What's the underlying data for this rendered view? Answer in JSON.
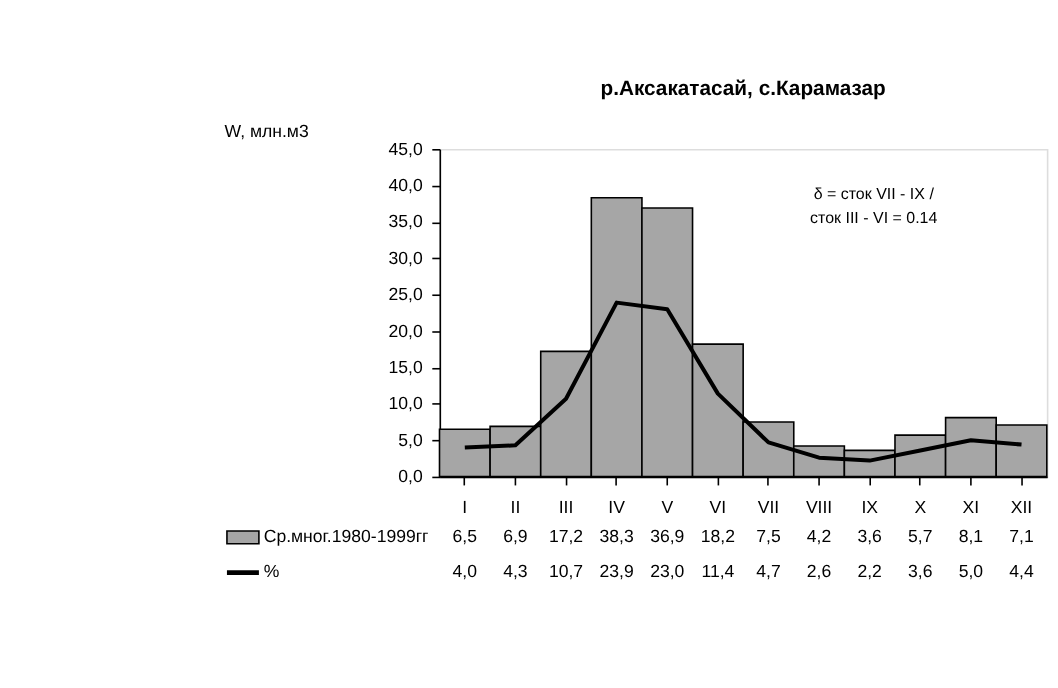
{
  "chart_data": {
    "type": "bar",
    "title": "р.Аксакатасай, с.Карамазар",
    "ylabel": "W, млн.м3",
    "categories": [
      "I",
      "II",
      "III",
      "IV",
      "V",
      "VI",
      "VII",
      "VIII",
      "IX",
      "X",
      "XI",
      "XII"
    ],
    "series": [
      {
        "name": "Ср.мног.1980-1999гг",
        "color": "#a6a6a6",
        "values": [
          6.5,
          6.9,
          17.2,
          38.3,
          36.9,
          18.2,
          7.5,
          4.2,
          3.6,
          5.7,
          8.1,
          7.1
        ],
        "value_labels": [
          "6,5",
          "6,9",
          "17,2",
          "38,3",
          "36,9",
          "18,2",
          "7,5",
          "4,2",
          "3,6",
          "5,7",
          "8,1",
          "7,1"
        ]
      },
      {
        "name": "%",
        "type": "line",
        "color": "#000000",
        "values": [
          4.0,
          4.3,
          10.7,
          23.9,
          23.0,
          11.4,
          4.7,
          2.6,
          2.2,
          3.6,
          5.0,
          4.4
        ],
        "value_labels": [
          "4,0",
          "4,3",
          "10,7",
          "23,9",
          "23,0",
          "11,4",
          "4,7",
          "2,6",
          "2,2",
          "3,6",
          "5,0",
          "4,4"
        ]
      }
    ],
    "ylim": [
      0,
      45
    ],
    "yticks": [
      {
        "value": 0,
        "label": "0,0"
      },
      {
        "value": 5,
        "label": "5,0"
      },
      {
        "value": 10,
        "label": "10,0"
      },
      {
        "value": 15,
        "label": "15,0"
      },
      {
        "value": 20,
        "label": "20,0"
      },
      {
        "value": 25,
        "label": "25,0"
      },
      {
        "value": 30,
        "label": "30,0"
      },
      {
        "value": 35,
        "label": "35,0"
      },
      {
        "value": 40,
        "label": "40,0"
      },
      {
        "value": 45,
        "label": "45,0"
      }
    ],
    "annotations": [
      "δ = сток VII - IX /\nсток III - VI = 0.14"
    ],
    "data_labels": true,
    "legend": "bottom",
    "grid": false,
    "marker": "none",
    "line_style": "solid"
  }
}
